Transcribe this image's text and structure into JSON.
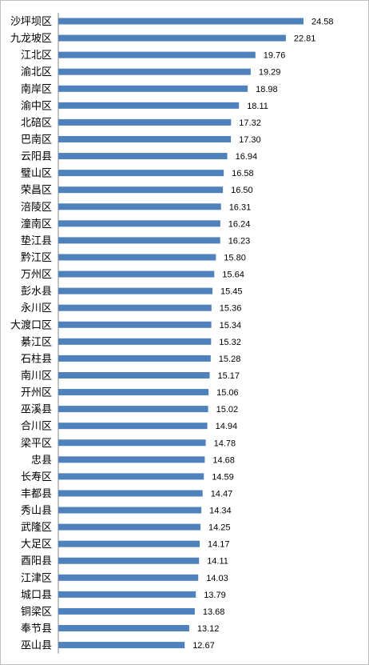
{
  "chart_data": {
    "type": "bar",
    "orientation": "horizontal",
    "title": "",
    "xlabel": "",
    "ylabel": "",
    "xlim": [
      0,
      24.58
    ],
    "grid": false,
    "legend": "none",
    "bar_color": "#4f81bd",
    "categories": [
      "沙坪坝区",
      "九龙坡区",
      "江北区",
      "渝北区",
      "南岸区",
      "渝中区",
      "北碚区",
      "巴南区",
      "云阳县",
      "璧山区",
      "荣昌区",
      "涪陵区",
      "潼南区",
      "垫江县",
      "黔江区",
      "万州区",
      "彭水县",
      "永川区",
      "大渡口区",
      "綦江区",
      "石柱县",
      "南川区",
      "开州区",
      "巫溪县",
      "合川区",
      "梁平区",
      "忠县",
      "长寿区",
      "丰都县",
      "秀山县",
      "武隆区",
      "大足区",
      "酉阳县",
      "江津区",
      "城口县",
      "铜梁区",
      "奉节县",
      "巫山县"
    ],
    "values": [
      24.58,
      22.81,
      19.76,
      19.29,
      18.98,
      18.11,
      17.32,
      17.3,
      16.94,
      16.58,
      16.5,
      16.31,
      16.24,
      16.23,
      15.8,
      15.64,
      15.45,
      15.36,
      15.34,
      15.32,
      15.28,
      15.17,
      15.06,
      15.02,
      14.94,
      14.78,
      14.68,
      14.59,
      14.47,
      14.34,
      14.25,
      14.17,
      14.11,
      14.03,
      13.79,
      13.68,
      13.12,
      12.67
    ],
    "value_labels": [
      "24.58",
      "22.81",
      "19.76",
      "19.29",
      "18.98",
      "18.11",
      "17.32",
      "17.30",
      "16.94",
      "16.58",
      "16.50",
      "16.31",
      "16.24",
      "16.23",
      "15.80",
      "15.64",
      "15.45",
      "15.36",
      "15.34",
      "15.32",
      "15.28",
      "15.17",
      "15.06",
      "15.02",
      "14.94",
      "14.78",
      "14.68",
      "14.59",
      "14.47",
      "14.34",
      "14.25",
      "14.17",
      "14.11",
      "14.03",
      "13.79",
      "13.68",
      "13.12",
      "12.67"
    ]
  }
}
